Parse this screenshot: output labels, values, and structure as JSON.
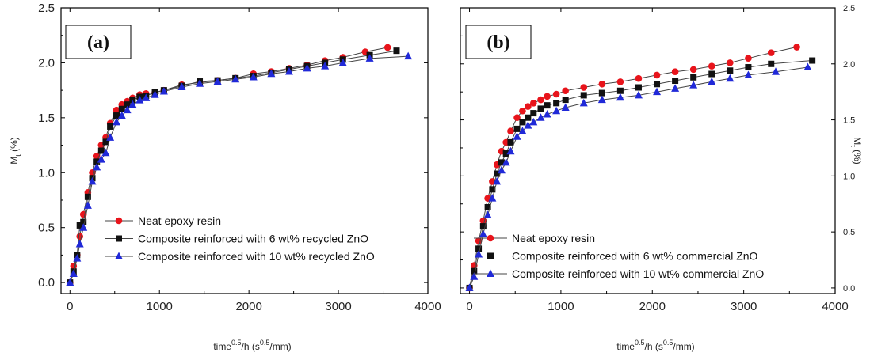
{
  "chart_data": [
    {
      "type": "line",
      "panel_label": "(a)",
      "xlabel": "time",
      "xlabel_sup": "0.5",
      "xlabel_rest": "/h  (s",
      "xlabel_unit_sup": "0.5",
      "xlabel_end": "/mm)",
      "ylabel": "M",
      "ylabel_sub": "t",
      "ylabel_unit": " (%)",
      "xlim": [
        -100,
        4000
      ],
      "ylim": [
        -0.1,
        2.5
      ],
      "xticks": [
        "0",
        "1000",
        "2000",
        "3000",
        "4000"
      ],
      "yticks": [
        "0.0",
        "0.5",
        "1.0",
        "1.5",
        "2.0",
        "2.5"
      ],
      "grid": false,
      "legend_position": "bottom-center",
      "series": [
        {
          "name": "Neat epoxy resin",
          "color": "#e8141b",
          "marker": "circle",
          "x": [
            0,
            40,
            80,
            110,
            150,
            200,
            250,
            300,
            350,
            400,
            450,
            520,
            580,
            640,
            700,
            780,
            850,
            950,
            1050,
            1250,
            1450,
            1650,
            1850,
            2050,
            2250,
            2450,
            2650,
            2850,
            3050,
            3300,
            3550
          ],
          "y": [
            0.0,
            0.15,
            0.25,
            0.42,
            0.62,
            0.82,
            1.0,
            1.15,
            1.25,
            1.32,
            1.45,
            1.57,
            1.62,
            1.65,
            1.68,
            1.71,
            1.72,
            1.73,
            1.75,
            1.8,
            1.82,
            1.84,
            1.86,
            1.9,
            1.92,
            1.95,
            1.98,
            2.02,
            2.05,
            2.1,
            2.14
          ]
        },
        {
          "name": "Composite reinforced with 6 wt% recycled ZnO",
          "color": "#111111",
          "marker": "square",
          "x": [
            0,
            40,
            80,
            110,
            150,
            200,
            250,
            300,
            350,
            400,
            450,
            520,
            580,
            640,
            700,
            780,
            850,
            950,
            1050,
            1250,
            1450,
            1650,
            1850,
            2050,
            2250,
            2450,
            2650,
            2850,
            3050,
            3350,
            3650
          ],
          "y": [
            0.0,
            0.1,
            0.25,
            0.52,
            0.55,
            0.78,
            0.95,
            1.1,
            1.2,
            1.28,
            1.42,
            1.52,
            1.58,
            1.62,
            1.66,
            1.69,
            1.7,
            1.73,
            1.75,
            1.79,
            1.83,
            1.84,
            1.86,
            1.88,
            1.91,
            1.94,
            1.97,
            2.0,
            2.03,
            2.07,
            2.11
          ]
        },
        {
          "name": "Composite reinforced with 10 wt% recycled ZnO",
          "color": "#2029d8",
          "marker": "triangle",
          "x": [
            0,
            40,
            80,
            110,
            150,
            200,
            250,
            300,
            350,
            400,
            450,
            520,
            580,
            640,
            700,
            780,
            850,
            950,
            1050,
            1250,
            1450,
            1650,
            1850,
            2050,
            2250,
            2450,
            2650,
            2850,
            3050,
            3350,
            3780
          ],
          "y": [
            0.0,
            0.08,
            0.22,
            0.35,
            0.5,
            0.7,
            0.92,
            1.05,
            1.12,
            1.18,
            1.32,
            1.46,
            1.52,
            1.57,
            1.62,
            1.66,
            1.68,
            1.71,
            1.74,
            1.78,
            1.81,
            1.83,
            1.85,
            1.87,
            1.9,
            1.92,
            1.95,
            1.97,
            2.0,
            2.04,
            2.06
          ]
        }
      ]
    },
    {
      "type": "line",
      "panel_label": "(b)",
      "xlabel": "time",
      "xlabel_sup": "0.5",
      "xlabel_rest": "/h  (s",
      "xlabel_unit_sup": "0.5",
      "xlabel_end": "/mm)",
      "ylabel": "M",
      "ylabel_sub": "t",
      "ylabel_unit": " (%)",
      "xlim": [
        -100,
        4000
      ],
      "ylim": [
        -0.05,
        2.5
      ],
      "xticks": [
        "0",
        "1000",
        "2000",
        "3000",
        "4000"
      ],
      "yticks": [
        "0.0",
        "0.5",
        "1.0",
        "1.5",
        "2.0",
        "2.5"
      ],
      "grid": false,
      "legend_position": "bottom-center",
      "series": [
        {
          "name": "Neat epoxy resin",
          "color": "#e8141b",
          "marker": "circle",
          "x": [
            0,
            50,
            100,
            150,
            200,
            250,
            300,
            350,
            400,
            450,
            520,
            580,
            640,
            700,
            780,
            850,
            950,
            1050,
            1250,
            1450,
            1650,
            1850,
            2050,
            2250,
            2450,
            2650,
            2850,
            3050,
            3300,
            3580
          ],
          "y": [
            0.0,
            0.2,
            0.42,
            0.6,
            0.8,
            0.95,
            1.1,
            1.22,
            1.3,
            1.4,
            1.52,
            1.58,
            1.62,
            1.65,
            1.68,
            1.71,
            1.73,
            1.76,
            1.79,
            1.82,
            1.84,
            1.87,
            1.9,
            1.93,
            1.95,
            1.98,
            2.01,
            2.05,
            2.1,
            2.15
          ]
        },
        {
          "name": "Composite reinforced with 6 wt% commercial ZnO",
          "color": "#111111",
          "marker": "square",
          "x": [
            0,
            50,
            100,
            150,
            200,
            250,
            300,
            350,
            400,
            450,
            520,
            580,
            640,
            700,
            780,
            850,
            950,
            1050,
            1250,
            1450,
            1650,
            1850,
            2050,
            2250,
            2450,
            2650,
            2850,
            3050,
            3300,
            3750
          ],
          "y": [
            0.0,
            0.15,
            0.35,
            0.55,
            0.72,
            0.88,
            1.02,
            1.12,
            1.2,
            1.3,
            1.42,
            1.48,
            1.52,
            1.56,
            1.6,
            1.63,
            1.65,
            1.68,
            1.72,
            1.74,
            1.76,
            1.79,
            1.82,
            1.85,
            1.88,
            1.91,
            1.94,
            1.97,
            2.0,
            2.03
          ]
        },
        {
          "name": "Composite reinforced with 10 wt% commercial ZnO",
          "color": "#2029d8",
          "marker": "triangle",
          "x": [
            0,
            50,
            100,
            150,
            200,
            250,
            300,
            350,
            400,
            450,
            520,
            580,
            640,
            700,
            780,
            850,
            950,
            1050,
            1250,
            1450,
            1650,
            1850,
            2050,
            2250,
            2450,
            2650,
            2850,
            3050,
            3350,
            3700
          ],
          "y": [
            0.0,
            0.1,
            0.3,
            0.48,
            0.65,
            0.8,
            0.95,
            1.05,
            1.12,
            1.22,
            1.35,
            1.4,
            1.45,
            1.48,
            1.52,
            1.55,
            1.58,
            1.61,
            1.65,
            1.68,
            1.7,
            1.72,
            1.75,
            1.78,
            1.81,
            1.84,
            1.87,
            1.9,
            1.93,
            1.97
          ]
        }
      ]
    }
  ]
}
